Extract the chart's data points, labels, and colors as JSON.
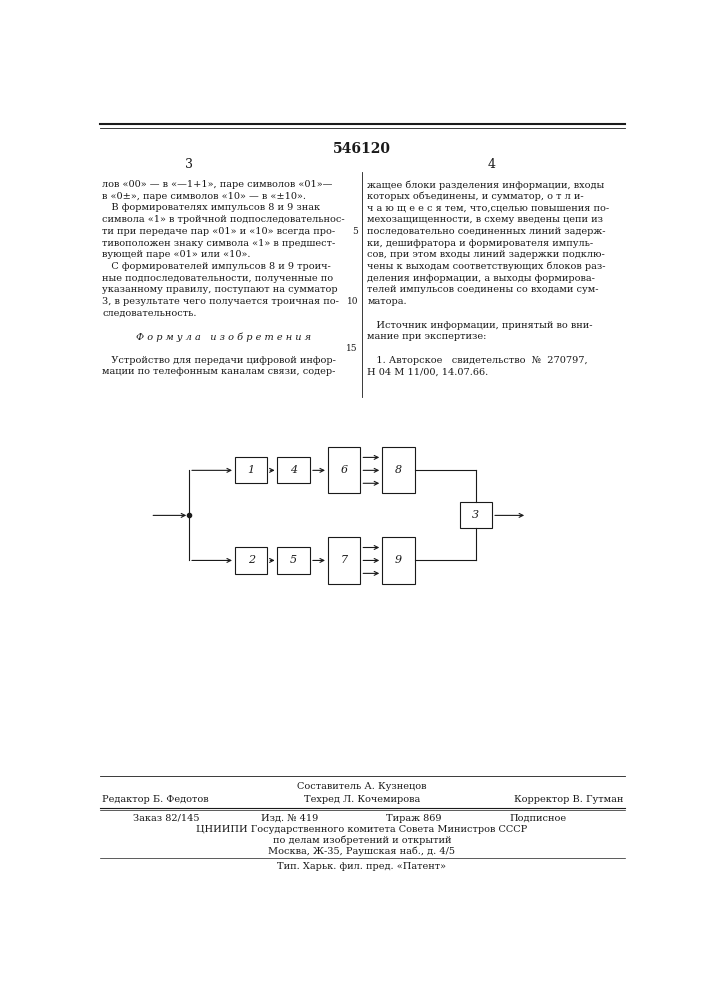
{
  "title": "546120",
  "bg_color": "#ffffff",
  "text_color": "#1a1a1a",
  "left_col_lines": [
    "лов «00» — в «—1+1», паре символов «01»—",
    "в «0±», паре символов «10» — в «±10».",
    "   В формирователях импульсов 8 и 9 знак",
    "символа «1» в тройчной подпоследовательнос-",
    "ти при передаче пар «01» и «10» всегда про-",
    "тивоположен знаку символа «1» в предшест-",
    "вующей паре «01» или «10».",
    "   С формирователей импульсов 8 и 9 троич-",
    "ные подпоследовательности, полученные по",
    "указанному правилу, поступают на сумматор",
    "3, в результате чего получается троичная по-",
    "следовательность.",
    "",
    "   Ф о р м у л а   и з о б р е т е н и я",
    "",
    "   Устройство для передачи цифровой инфор-",
    "мации по телефонным каналам связи, содер-"
  ],
  "right_col_lines": [
    "жащее блоки разделения информации, входы",
    "которых объединены, и сумматор, о т л и-",
    "ч а ю щ е е с я тем, что,сцелью повышения по-",
    "мехозащищенности, в схему введены цепи из",
    "последовательно соединенных линий задерж-",
    "ки, дешифратора и формирователя импуль-",
    "сов, при этом входы линий задержки подклю-",
    "чены к выходам соответствующих блоков раз-",
    "деления информации, а выходы формирова-",
    "телей импульсов соединены со входами сум-",
    "матора.",
    "",
    "   Источник информации, принятый во вни-",
    "мание при экспертизе:",
    "",
    "   1. Авторское   свидетельство  №  270797,",
    "Н 04 М 11/00, 14.07.66."
  ],
  "line_numbers": [
    "5",
    "10",
    "15"
  ],
  "line_number_rows": [
    4,
    10,
    14
  ],
  "bottom_composer": "Составитель А. Кузнецов",
  "bottom_editor": "Редактор Б. Федотов",
  "bottom_tech": "Техред Л. Кочемирова",
  "bottom_corrector": "Корректор В. Гутман",
  "bottom_order": "Заказ 82/145",
  "bottom_pub": "Изд. № 419",
  "bottom_print": "Тираж 869",
  "bottom_sign": "Подписное",
  "bottom_org": "ЦНИИПИ Государственного комитета Совета Министров СССР",
  "bottom_dept": "по делам изобретений и открытий",
  "bottom_addr": "Москва, Ж-35, Раушская наб., д. 4/5",
  "bottom_print2": "Тип. Харьк. фил. пред. «Патент»"
}
